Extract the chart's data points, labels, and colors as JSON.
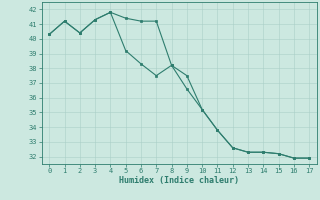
{
  "xlabel": "Humidex (Indice chaleur)",
  "xlim": [
    -0.5,
    17.5
  ],
  "ylim": [
    31.5,
    42.5
  ],
  "yticks": [
    32,
    33,
    34,
    35,
    36,
    37,
    38,
    39,
    40,
    41,
    42
  ],
  "xticks": [
    0,
    1,
    2,
    3,
    4,
    5,
    6,
    7,
    8,
    9,
    10,
    11,
    12,
    13,
    14,
    15,
    16,
    17
  ],
  "line1_x": [
    0,
    1,
    2,
    3,
    4,
    5,
    6,
    7,
    8,
    9,
    10,
    11,
    12,
    13,
    14,
    15,
    16,
    17
  ],
  "line1_y": [
    40.3,
    41.2,
    40.4,
    41.3,
    41.8,
    41.4,
    41.2,
    41.2,
    38.2,
    37.5,
    35.2,
    33.8,
    32.6,
    32.3,
    32.3,
    32.2,
    31.9,
    31.9
  ],
  "line2_x": [
    0,
    1,
    2,
    3,
    4,
    5,
    6,
    7,
    8,
    9,
    10,
    11,
    12,
    13,
    14,
    15,
    16,
    17
  ],
  "line2_y": [
    40.3,
    41.2,
    40.4,
    41.3,
    41.8,
    39.2,
    38.3,
    37.5,
    38.2,
    36.6,
    35.2,
    33.8,
    32.6,
    32.3,
    32.3,
    32.2,
    31.9,
    31.9
  ],
  "line_color": "#2e7d6e",
  "bg_color": "#cce8e0",
  "grid_color": "#aacfc8",
  "tick_color": "#2e7d6e",
  "marker": "s",
  "marker_size": 1.8,
  "linewidth": 0.8
}
